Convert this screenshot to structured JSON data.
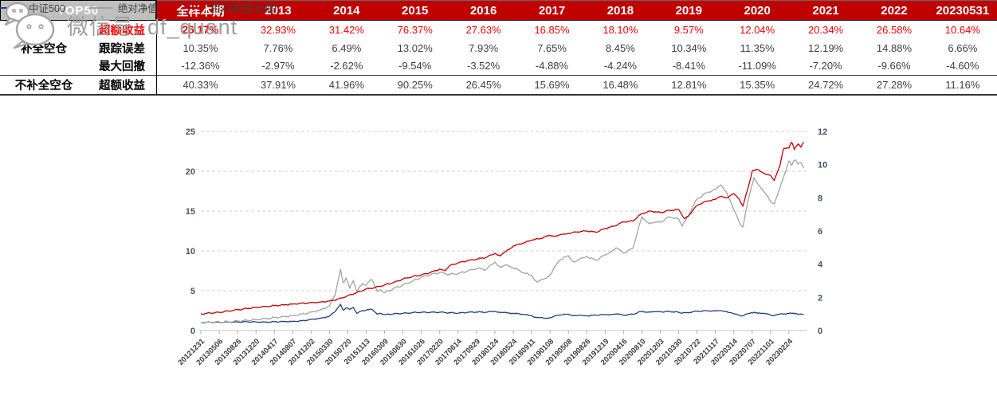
{
  "table": {
    "corner_label": "TOP50",
    "columns": [
      "全样本期",
      "2013",
      "2014",
      "2015",
      "2016",
      "2017",
      "2018",
      "2019",
      "2020",
      "2021",
      "2022",
      "20230531"
    ],
    "rows": [
      {
        "group": "补全空仓",
        "label": "超额收益",
        "values": [
          "26.17%",
          "32.93%",
          "31.42%",
          "76.37%",
          "27.63%",
          "16.85%",
          "18.10%",
          "9.57%",
          "12.04%",
          "20.34%",
          "26.58%",
          "10.64%"
        ]
      },
      {
        "label": "跟踪误差",
        "values": [
          "10.35%",
          "7.76%",
          "6.49%",
          "13.02%",
          "7.93%",
          "7.65%",
          "8.45%",
          "10.34%",
          "11.35%",
          "12.19%",
          "14.88%",
          "6.66%"
        ]
      },
      {
        "label": "最大回撤",
        "values": [
          "-12.36%",
          "-2.97%",
          "-2.62%",
          "-9.54%",
          "-3.52%",
          "-4.88%",
          "-4.24%",
          "-8.41%",
          "-11.09%",
          "-7.20%",
          "-9.66%",
          "-4.60%"
        ]
      },
      {
        "group": "不补全空仓",
        "label": "超额收益",
        "values": [
          "40.33%",
          "37.91%",
          "41.96%",
          "90.25%",
          "26.45%",
          "15.69%",
          "16.48%",
          "12.81%",
          "15.35%",
          "24.72%",
          "27.28%",
          "11.16%"
        ]
      }
    ],
    "colors": {
      "header_bg": "#c00000",
      "corner_bg": "#bfbfbf",
      "highlight_red": "#fe0000",
      "value_text": "#3f3f3f"
    }
  },
  "chart_data": {
    "type": "line",
    "title": "",
    "xlabel": "",
    "ylabel_left": "",
    "ylabel_right": "",
    "grid": "dashed-horizontal",
    "legend_position": "bottom",
    "left_axis": {
      "range": [
        0,
        25
      ],
      "ticks": [
        0,
        5,
        10,
        15,
        20,
        25
      ]
    },
    "right_axis": {
      "range": [
        0,
        12
      ],
      "ticks": [
        0,
        2,
        4,
        6,
        8,
        10,
        12
      ]
    },
    "x_tick_labels": [
      "20121231",
      "20130506",
      "20130826",
      "20131220",
      "20140417",
      "20140807",
      "20141202",
      "20150330",
      "20150720",
      "20151113",
      "20160309",
      "20160630",
      "20161026",
      "20170220",
      "20170614",
      "20170929",
      "20180124",
      "20180524",
      "20180911",
      "20190108",
      "20190508",
      "20190826",
      "20191219",
      "20200416",
      "20200810",
      "20201203",
      "20210330",
      "20210722",
      "20211117",
      "20220314",
      "20220707",
      "20221101",
      "20230224"
    ],
    "series": [
      {
        "key": "csi500",
        "name": "中证500",
        "axis": "left",
        "color": "#1f3f77",
        "points": [
          [
            0,
            1.0
          ],
          [
            0.5,
            1.04
          ],
          [
            1,
            1.03
          ],
          [
            1.5,
            1.08
          ],
          [
            2,
            1.06
          ],
          [
            2.5,
            1.1
          ],
          [
            3,
            1.09
          ],
          [
            3.5,
            1.06
          ],
          [
            4,
            1.1
          ],
          [
            4.5,
            1.14
          ],
          [
            5,
            1.16
          ],
          [
            5.5,
            1.22
          ],
          [
            6,
            1.4
          ],
          [
            6.5,
            1.55
          ],
          [
            7,
            1.8
          ],
          [
            7.3,
            2.35
          ],
          [
            7.6,
            3.3
          ],
          [
            7.75,
            2.55
          ],
          [
            7.9,
            2.85
          ],
          [
            8.1,
            2.65
          ],
          [
            8.3,
            2.9
          ],
          [
            8.5,
            2.15
          ],
          [
            8.8,
            2.5
          ],
          [
            9,
            2.55
          ],
          [
            9.3,
            2.65
          ],
          [
            9.6,
            2.05
          ],
          [
            9.8,
            2.15
          ],
          [
            10,
            2.0
          ],
          [
            10.5,
            2.1
          ],
          [
            11,
            2.15
          ],
          [
            11.5,
            2.25
          ],
          [
            12,
            2.3
          ],
          [
            12.5,
            2.28
          ],
          [
            13,
            2.3
          ],
          [
            13.5,
            2.24
          ],
          [
            14,
            2.18
          ],
          [
            14.5,
            2.28
          ],
          [
            15,
            2.33
          ],
          [
            15.5,
            2.3
          ],
          [
            16,
            2.42
          ],
          [
            16.3,
            2.25
          ],
          [
            17,
            2.18
          ],
          [
            17.5,
            2.05
          ],
          [
            18,
            1.85
          ],
          [
            18.3,
            1.62
          ],
          [
            18.7,
            1.55
          ],
          [
            19,
            1.62
          ],
          [
            19.5,
            1.95
          ],
          [
            20,
            2.05
          ],
          [
            20.3,
            1.88
          ],
          [
            21,
            1.85
          ],
          [
            21.5,
            1.92
          ],
          [
            22,
            2.0
          ],
          [
            22.6,
            2.1
          ],
          [
            23,
            1.92
          ],
          [
            23.5,
            2.05
          ],
          [
            24,
            2.42
          ],
          [
            24.4,
            2.3
          ],
          [
            25,
            2.35
          ],
          [
            25.5,
            2.4
          ],
          [
            26,
            2.3
          ],
          [
            26.2,
            2.18
          ],
          [
            27,
            2.42
          ],
          [
            27.5,
            2.5
          ],
          [
            28,
            2.45
          ],
          [
            28.3,
            2.5
          ],
          [
            28.6,
            2.4
          ],
          [
            29,
            2.1
          ],
          [
            29.3,
            1.92
          ],
          [
            29.5,
            1.85
          ],
          [
            29.8,
            2.15
          ],
          [
            30.1,
            2.3
          ],
          [
            30.4,
            2.22
          ],
          [
            30.7,
            2.15
          ],
          [
            31,
            1.95
          ],
          [
            31.2,
            1.88
          ],
          [
            31.5,
            2.05
          ],
          [
            32,
            2.15
          ],
          [
            32.3,
            2.1
          ],
          [
            32.5,
            2.05
          ],
          [
            32.8,
            2.0
          ]
        ]
      },
      {
        "key": "absolute-nav",
        "name": "绝对净值",
        "axis": "left",
        "color": "#a3a3a3",
        "points": [
          [
            0,
            1.0
          ],
          [
            0.5,
            1.03
          ],
          [
            1,
            1.08
          ],
          [
            1.5,
            1.12
          ],
          [
            2,
            1.18
          ],
          [
            2.5,
            1.28
          ],
          [
            3,
            1.4
          ],
          [
            3.5,
            1.5
          ],
          [
            4,
            1.62
          ],
          [
            4.5,
            1.75
          ],
          [
            5,
            1.9
          ],
          [
            5.5,
            2.05
          ],
          [
            6,
            2.3
          ],
          [
            6.5,
            2.6
          ],
          [
            7,
            3.1
          ],
          [
            7.3,
            4.4
          ],
          [
            7.6,
            7.7
          ],
          [
            7.75,
            6.0
          ],
          [
            7.9,
            6.6
          ],
          [
            8.1,
            5.3
          ],
          [
            8.3,
            6.3
          ],
          [
            8.5,
            4.9
          ],
          [
            8.8,
            5.9
          ],
          [
            9,
            5.7
          ],
          [
            9.3,
            6.4
          ],
          [
            9.6,
            4.9
          ],
          [
            9.8,
            5.1
          ],
          [
            10,
            4.75
          ],
          [
            10.5,
            5.3
          ],
          [
            11,
            5.7
          ],
          [
            11.5,
            6.2
          ],
          [
            12,
            6.7
          ],
          [
            12.5,
            7.0
          ],
          [
            13,
            7.3
          ],
          [
            13.5,
            7.05
          ],
          [
            14,
            7.15
          ],
          [
            14.5,
            7.45
          ],
          [
            15,
            7.8
          ],
          [
            15.5,
            7.65
          ],
          [
            16,
            8.6
          ],
          [
            16.3,
            7.9
          ],
          [
            16.6,
            8.2
          ],
          [
            17,
            7.9
          ],
          [
            17.5,
            7.3
          ],
          [
            18,
            6.9
          ],
          [
            18.3,
            6.05
          ],
          [
            18.7,
            6.5
          ],
          [
            19,
            7.0
          ],
          [
            19.5,
            8.8
          ],
          [
            20,
            9.4
          ],
          [
            20.3,
            8.6
          ],
          [
            21,
            9.3
          ],
          [
            21.5,
            8.8
          ],
          [
            22,
            9.5
          ],
          [
            22.6,
            10.4
          ],
          [
            23,
            9.7
          ],
          [
            23.5,
            10.3
          ],
          [
            24,
            14.3
          ],
          [
            24.4,
            13.4
          ],
          [
            25,
            13.6
          ],
          [
            25.5,
            14.3
          ],
          [
            26,
            14.0
          ],
          [
            26.2,
            13.1
          ],
          [
            27,
            16.5
          ],
          [
            27.5,
            17.3
          ],
          [
            28,
            17.7
          ],
          [
            28.3,
            18.3
          ],
          [
            28.6,
            17.4
          ],
          [
            29,
            15.2
          ],
          [
            29.3,
            13.6
          ],
          [
            29.5,
            13.0
          ],
          [
            29.8,
            16.6
          ],
          [
            30.1,
            19.2
          ],
          [
            30.4,
            18.2
          ],
          [
            30.7,
            17.3
          ],
          [
            31,
            16.2
          ],
          [
            31.2,
            15.9
          ],
          [
            31.5,
            17.8
          ],
          [
            31.75,
            19.6
          ],
          [
            32,
            21.3
          ],
          [
            32.15,
            20.7
          ],
          [
            32.3,
            21.4
          ],
          [
            32.5,
            20.9
          ],
          [
            32.65,
            21.1
          ],
          [
            32.8,
            20.4
          ]
        ]
      },
      {
        "key": "relative-nav",
        "name": "相对净值(右轴)",
        "axis": "right",
        "color": "#c00000",
        "points": [
          [
            0,
            1.0
          ],
          [
            0.5,
            1.05
          ],
          [
            1,
            1.1
          ],
          [
            1.5,
            1.18
          ],
          [
            2,
            1.25
          ],
          [
            2.5,
            1.33
          ],
          [
            3,
            1.4
          ],
          [
            3.5,
            1.45
          ],
          [
            4,
            1.5
          ],
          [
            4.5,
            1.55
          ],
          [
            5,
            1.6
          ],
          [
            5.5,
            1.64
          ],
          [
            6,
            1.68
          ],
          [
            6.5,
            1.72
          ],
          [
            7,
            1.78
          ],
          [
            7.5,
            1.9
          ],
          [
            8,
            2.1
          ],
          [
            8.5,
            2.3
          ],
          [
            9,
            2.5
          ],
          [
            9.5,
            2.6
          ],
          [
            10,
            2.75
          ],
          [
            10.5,
            2.9
          ],
          [
            11,
            3.1
          ],
          [
            11.5,
            3.25
          ],
          [
            12,
            3.35
          ],
          [
            12.5,
            3.5
          ],
          [
            13,
            3.7
          ],
          [
            13.3,
            3.6
          ],
          [
            13.6,
            3.95
          ],
          [
            14,
            4.08
          ],
          [
            14.5,
            4.2
          ],
          [
            15,
            4.3
          ],
          [
            15.5,
            4.4
          ],
          [
            16,
            4.65
          ],
          [
            16.3,
            4.5
          ],
          [
            17,
            5.1
          ],
          [
            17.5,
            5.25
          ],
          [
            18,
            5.45
          ],
          [
            18.5,
            5.55
          ],
          [
            19,
            5.75
          ],
          [
            19.3,
            5.7
          ],
          [
            20,
            5.85
          ],
          [
            20.5,
            5.95
          ],
          [
            21,
            6.0
          ],
          [
            21.5,
            5.92
          ],
          [
            22,
            6.15
          ],
          [
            22.5,
            6.3
          ],
          [
            23,
            6.55
          ],
          [
            23.5,
            6.6
          ],
          [
            24,
            7.05
          ],
          [
            24.5,
            7.2
          ],
          [
            25,
            7.1
          ],
          [
            25.5,
            7.25
          ],
          [
            26,
            7.3
          ],
          [
            26.3,
            6.75
          ],
          [
            26.6,
            7.0
          ],
          [
            27,
            7.55
          ],
          [
            27.5,
            7.8
          ],
          [
            28,
            7.9
          ],
          [
            28.3,
            8.1
          ],
          [
            28.6,
            8.0
          ],
          [
            29,
            8.25
          ],
          [
            29.3,
            7.9
          ],
          [
            29.5,
            7.5
          ],
          [
            29.8,
            8.7
          ],
          [
            30,
            9.6
          ],
          [
            30.3,
            9.7
          ],
          [
            30.6,
            9.5
          ],
          [
            31,
            9.35
          ],
          [
            31.2,
            9.05
          ],
          [
            31.5,
            9.9
          ],
          [
            31.7,
            10.95
          ],
          [
            32,
            11.0
          ],
          [
            32.15,
            11.35
          ],
          [
            32.3,
            10.9
          ],
          [
            32.5,
            11.25
          ],
          [
            32.65,
            11.05
          ],
          [
            32.8,
            11.35
          ]
        ]
      }
    ]
  },
  "watermark": {
    "icon": "wechat-icon",
    "text": "微信号: df_quant"
  }
}
